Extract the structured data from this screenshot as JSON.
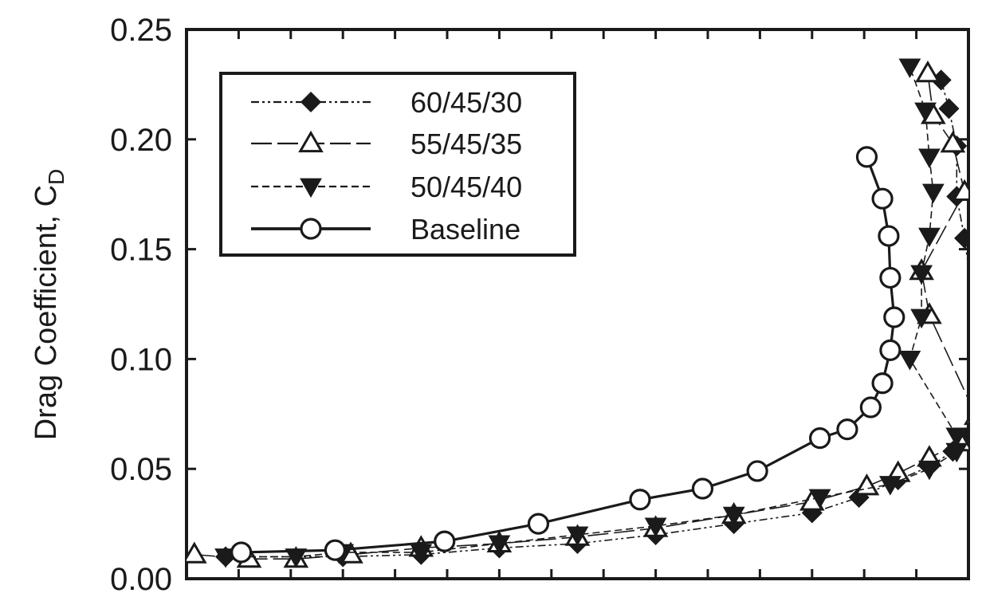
{
  "chart_data": {
    "type": "line",
    "ylabel_main": "Drag Coefficient, C",
    "ylabel_sub": "D",
    "xlabel": "",
    "ylim": [
      0,
      0.25
    ],
    "xlim": [
      0,
      1
    ],
    "y_ticks": [
      "0.00",
      "0.05",
      "0.10",
      "0.15",
      "0.20",
      "0.25"
    ],
    "y_tick_values": [
      0,
      0.05,
      0.1,
      0.15,
      0.2,
      0.25
    ],
    "x_tick_count": 15,
    "legend_position": "top-left",
    "series": [
      {
        "name": "60/45/30",
        "marker": "diamond",
        "dash": "10,4,3,4,3,4",
        "stroke_width": 1.6,
        "x": [
          0.05,
          0.2,
          0.3,
          0.4,
          0.5,
          0.6,
          0.7,
          0.8,
          0.86,
          0.91,
          0.95,
          0.98,
          1.0,
          1.015,
          1.015,
          0.995,
          0.985,
          0.985,
          0.975,
          0.965
        ],
        "y": [
          0.01,
          0.01,
          0.011,
          0.014,
          0.016,
          0.02,
          0.025,
          0.03,
          0.037,
          0.045,
          0.051,
          0.058,
          0.065,
          0.088,
          0.103,
          0.155,
          0.174,
          0.197,
          0.214,
          0.227
        ]
      },
      {
        "name": "55/45/35",
        "marker": "triangle-up",
        "dash": "26,7",
        "stroke_width": 1.6,
        "x": [
          0.01,
          0.08,
          0.14,
          0.21,
          0.3,
          0.4,
          0.5,
          0.6,
          0.7,
          0.8,
          0.87,
          0.91,
          0.95,
          0.99,
          1.01,
          0.95,
          0.94,
          0.995,
          0.98,
          0.955,
          0.948
        ],
        "y": [
          0.011,
          0.009,
          0.009,
          0.011,
          0.014,
          0.016,
          0.019,
          0.023,
          0.029,
          0.035,
          0.042,
          0.048,
          0.055,
          0.062,
          0.074,
          0.12,
          0.14,
          0.176,
          0.198,
          0.211,
          0.23
        ]
      },
      {
        "name": "50/45/40",
        "marker": "triangle-down",
        "dash": "9,5",
        "stroke_width": 1.6,
        "x": [
          0.05,
          0.14,
          0.2,
          0.3,
          0.4,
          0.5,
          0.6,
          0.7,
          0.81,
          0.9,
          0.95,
          0.985,
          0.985,
          0.925,
          0.94,
          0.94,
          0.95,
          0.955,
          0.95,
          0.945,
          0.925
        ],
        "y": [
          0.01,
          0.01,
          0.012,
          0.012,
          0.016,
          0.02,
          0.024,
          0.029,
          0.037,
          0.043,
          0.05,
          0.058,
          0.065,
          0.1,
          0.119,
          0.139,
          0.156,
          0.176,
          0.192,
          0.213,
          0.233
        ]
      },
      {
        "name": "Baseline",
        "marker": "circle",
        "dash": "",
        "stroke_width": 3.2,
        "x": [
          0.07,
          0.19,
          0.33,
          0.45,
          0.58,
          0.66,
          0.73,
          0.81,
          0.845,
          0.875,
          0.89,
          0.9,
          0.905,
          0.9,
          0.898,
          0.89,
          0.87
        ],
        "y": [
          0.012,
          0.013,
          0.017,
          0.025,
          0.036,
          0.041,
          0.049,
          0.064,
          0.068,
          0.078,
          0.089,
          0.104,
          0.119,
          0.137,
          0.156,
          0.173,
          0.192
        ]
      }
    ]
  }
}
